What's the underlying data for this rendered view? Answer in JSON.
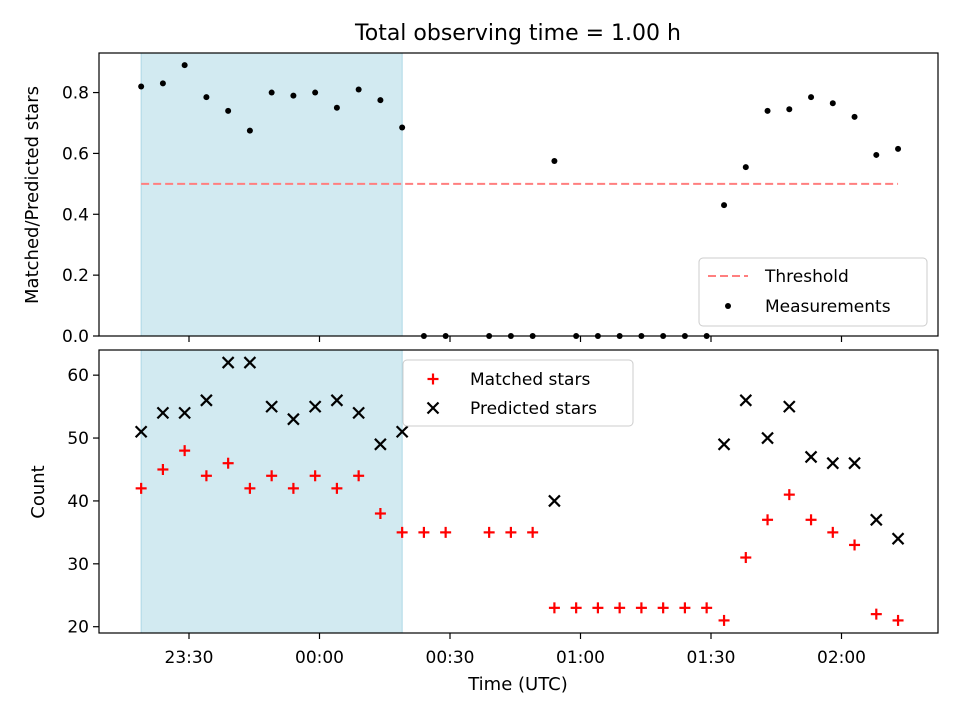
{
  "title": "Total observing time = 1.00 h",
  "chart_data": [
    {
      "type": "scatter",
      "ylabel": "Matched/Predicted stars",
      "ylim": [
        0,
        0.93
      ],
      "yticks": [
        0.0,
        0.2,
        0.4,
        0.6,
        0.8
      ],
      "ytick_labels": [
        "0.0",
        "0.2",
        "0.4",
        "0.6",
        "0.8"
      ],
      "shaded_interval": [
        "23:19",
        "00:19"
      ],
      "threshold": {
        "name": "Threshold",
        "value": 0.5,
        "x_start": "23:19",
        "x_end": "02:13",
        "color": "#ff7f7f"
      },
      "series": [
        {
          "name": "Measurements",
          "color": "#000000",
          "points": [
            [
              "23:19",
              0.82
            ],
            [
              "23:24",
              0.83
            ],
            [
              "23:29",
              0.89
            ],
            [
              "23:34",
              0.785
            ],
            [
              "23:39",
              0.74
            ],
            [
              "23:44",
              0.675
            ],
            [
              "23:49",
              0.8
            ],
            [
              "23:54",
              0.79
            ],
            [
              "23:59",
              0.8
            ],
            [
              "00:04",
              0.75
            ],
            [
              "00:09",
              0.81
            ],
            [
              "00:14",
              0.775
            ],
            [
              "00:19",
              0.685
            ],
            [
              "00:24",
              0.0
            ],
            [
              "00:29",
              0.0
            ],
            [
              "00:39",
              0.0
            ],
            [
              "00:44",
              0.0
            ],
            [
              "00:49",
              0.0
            ],
            [
              "00:54",
              0.575
            ],
            [
              "00:59",
              0.0
            ],
            [
              "01:04",
              0.0
            ],
            [
              "01:09",
              0.0
            ],
            [
              "01:14",
              0.0
            ],
            [
              "01:19",
              0.0
            ],
            [
              "01:24",
              0.0
            ],
            [
              "01:29",
              0.0
            ],
            [
              "01:33",
              0.43
            ],
            [
              "01:38",
              0.555
            ],
            [
              "01:43",
              0.74
            ],
            [
              "01:48",
              0.745
            ],
            [
              "01:53",
              0.785
            ],
            [
              "01:58",
              0.765
            ],
            [
              "02:03",
              0.72
            ],
            [
              "02:08",
              0.595
            ],
            [
              "02:13",
              0.615
            ]
          ]
        }
      ],
      "legend": {
        "placement": "lower-right",
        "entries": [
          "Threshold",
          "Measurements"
        ]
      }
    },
    {
      "type": "scatter",
      "xlabel": "Time (UTC)",
      "ylabel": "Count",
      "ylim": [
        19,
        64
      ],
      "yticks": [
        20,
        30,
        40,
        50,
        60
      ],
      "ytick_labels": [
        "20",
        "30",
        "40",
        "50",
        "60"
      ],
      "xticks": [
        "23:30",
        "00:00",
        "00:30",
        "01:00",
        "01:30",
        "02:00"
      ],
      "xtick_labels": [
        "23:30",
        "00:00",
        "00:30",
        "01:00",
        "01:30",
        "02:00"
      ],
      "shaded_interval": [
        "23:19",
        "00:19"
      ],
      "series": [
        {
          "name": "Matched stars",
          "marker": "plus",
          "color": "#ff0000",
          "points": [
            [
              "23:19",
              42
            ],
            [
              "23:24",
              45
            ],
            [
              "23:29",
              48
            ],
            [
              "23:34",
              44
            ],
            [
              "23:39",
              46
            ],
            [
              "23:44",
              42
            ],
            [
              "23:49",
              44
            ],
            [
              "23:54",
              42
            ],
            [
              "23:59",
              44
            ],
            [
              "00:04",
              42
            ],
            [
              "00:09",
              44
            ],
            [
              "00:14",
              38
            ],
            [
              "00:19",
              35
            ],
            [
              "00:24",
              35
            ],
            [
              "00:29",
              35
            ],
            [
              "00:39",
              35
            ],
            [
              "00:44",
              35
            ],
            [
              "00:49",
              35
            ],
            [
              "00:54",
              23
            ],
            [
              "00:59",
              23
            ],
            [
              "01:04",
              23
            ],
            [
              "01:09",
              23
            ],
            [
              "01:14",
              23
            ],
            [
              "01:19",
              23
            ],
            [
              "01:24",
              23
            ],
            [
              "01:29",
              23
            ],
            [
              "01:33",
              21
            ],
            [
              "01:38",
              31
            ],
            [
              "01:43",
              37
            ],
            [
              "01:48",
              41
            ],
            [
              "01:53",
              37
            ],
            [
              "01:58",
              35
            ],
            [
              "02:03",
              33
            ],
            [
              "02:08",
              22
            ],
            [
              "02:13",
              21
            ]
          ]
        },
        {
          "name": "Predicted stars",
          "marker": "x",
          "color": "#000000",
          "points": [
            [
              "23:19",
              51
            ],
            [
              "23:24",
              54
            ],
            [
              "23:29",
              54
            ],
            [
              "23:34",
              56
            ],
            [
              "23:39",
              62
            ],
            [
              "23:44",
              62
            ],
            [
              "23:49",
              55
            ],
            [
              "23:54",
              53
            ],
            [
              "23:59",
              55
            ],
            [
              "00:04",
              56
            ],
            [
              "00:09",
              54
            ],
            [
              "00:14",
              49
            ],
            [
              "00:19",
              51
            ],
            [
              "00:54",
              40
            ],
            [
              "01:33",
              49
            ],
            [
              "01:38",
              56
            ],
            [
              "01:43",
              50
            ],
            [
              "01:48",
              55
            ],
            [
              "01:53",
              47
            ],
            [
              "01:58",
              46
            ],
            [
              "02:03",
              46
            ],
            [
              "02:08",
              37
            ],
            [
              "02:13",
              34
            ]
          ]
        }
      ],
      "legend": {
        "placement": "upper-center",
        "entries": [
          "Matched stars",
          "Predicted stars"
        ]
      }
    }
  ],
  "colors": {
    "shade": "#add8e6",
    "axis": "#000000"
  }
}
